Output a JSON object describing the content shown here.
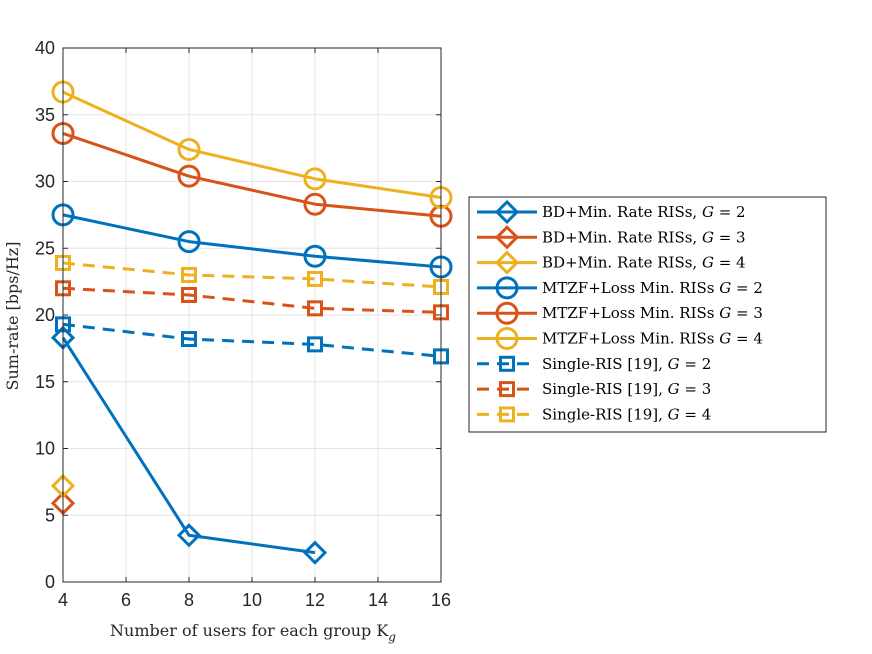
{
  "chart_data": {
    "type": "line",
    "xlabel": "Number of users for each group K",
    "xlabel_sub": "g",
    "ylabel": "Sum-rate [bps/Hz]",
    "xlim": [
      4,
      16
    ],
    "ylim": [
      0,
      40
    ],
    "xticks": [
      4,
      6,
      8,
      10,
      12,
      14,
      16
    ],
    "yticks": [
      0,
      5,
      10,
      15,
      20,
      25,
      30,
      35,
      40
    ],
    "grid": true,
    "legend_position": "right, outside",
    "colors": {
      "blue": "#0072BD",
      "orange": "#D95319",
      "yellow": "#EDB120"
    },
    "series": [
      {
        "name": "BD+Min. Rate RISs, G = 2",
        "label_prefix": "BD+Min. Rate RISs, ",
        "g": "2",
        "color": "#0072BD",
        "marker": "diamond",
        "dash": false,
        "x": [
          4,
          8,
          12
        ],
        "y": [
          18.3,
          3.5,
          2.2
        ]
      },
      {
        "name": "BD+Min. Rate RISs, G = 3",
        "label_prefix": "BD+Min. Rate RISs, ",
        "g": "3",
        "color": "#D95319",
        "marker": "diamond",
        "dash": false,
        "x": [
          4
        ],
        "y": [
          5.9
        ]
      },
      {
        "name": "BD+Min. Rate RISs, G = 4",
        "label_prefix": "BD+Min. Rate RISs, ",
        "g": "4",
        "color": "#EDB120",
        "marker": "diamond",
        "dash": false,
        "x": [
          4
        ],
        "y": [
          7.2
        ]
      },
      {
        "name": "MTZF+Loss Min. RISs G = 2",
        "label_prefix": "MTZF+Loss Min. RISs ",
        "g": "2",
        "color": "#0072BD",
        "marker": "circle",
        "dash": false,
        "x": [
          4,
          8,
          12,
          16
        ],
        "y": [
          27.5,
          25.5,
          24.4,
          23.6
        ]
      },
      {
        "name": "MTZF+Loss Min. RISs G = 3",
        "label_prefix": "MTZF+Loss Min. RISs ",
        "g": "3",
        "color": "#D95319",
        "marker": "circle",
        "dash": false,
        "x": [
          4,
          8,
          12,
          16
        ],
        "y": [
          33.6,
          30.4,
          28.3,
          27.4
        ]
      },
      {
        "name": "MTZF+Loss Min. RISs G = 4",
        "label_prefix": "MTZF+Loss Min. RISs ",
        "g": "4",
        "color": "#EDB120",
        "marker": "circle",
        "dash": false,
        "x": [
          4,
          8,
          12,
          16
        ],
        "y": [
          36.7,
          32.4,
          30.2,
          28.8
        ]
      },
      {
        "name": "Single-RIS [19], G = 2",
        "label_prefix": "Single-RIS [19], ",
        "g": "2",
        "color": "#0072BD",
        "marker": "square",
        "dash": true,
        "x": [
          4,
          8,
          12,
          16
        ],
        "y": [
          19.3,
          18.2,
          17.8,
          16.9
        ]
      },
      {
        "name": "Single-RIS [19], G = 3",
        "label_prefix": "Single-RIS [19], ",
        "g": "3",
        "color": "#D95319",
        "marker": "square",
        "dash": true,
        "x": [
          4,
          8,
          12,
          16
        ],
        "y": [
          22.0,
          21.5,
          20.5,
          20.2
        ]
      },
      {
        "name": "Single-RIS [19], G = 4",
        "label_prefix": "Single-RIS [19], ",
        "g": "4",
        "color": "#EDB120",
        "marker": "square",
        "dash": true,
        "x": [
          4,
          8,
          12,
          16
        ],
        "y": [
          23.9,
          23.0,
          22.7,
          22.1
        ]
      }
    ]
  }
}
